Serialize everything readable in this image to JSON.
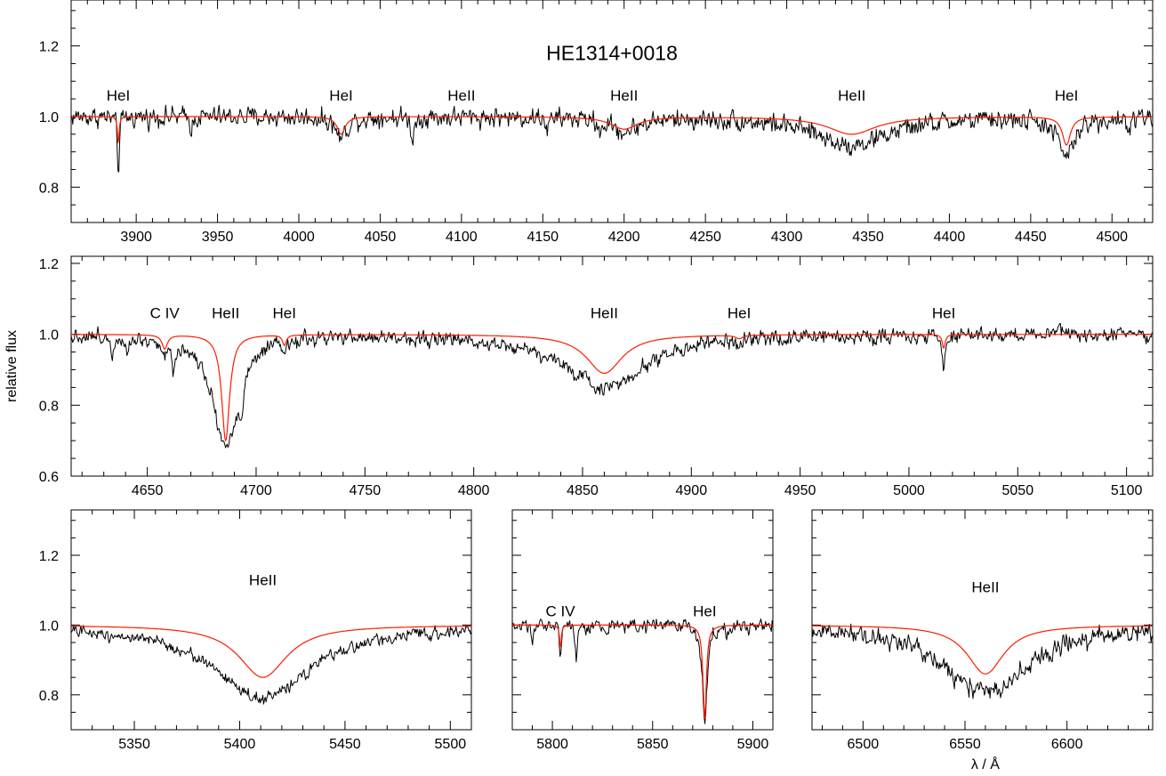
{
  "chart_data": {
    "type": "line",
    "title": "HE1314+0018",
    "ylabel": "relative flux",
    "xlabel": "λ / Å",
    "colors": {
      "observed": "#000000",
      "model": "#ff1a00"
    },
    "series_styles": [
      {
        "role": "observed spectrum",
        "color": "#000000"
      },
      {
        "role": "model spectrum",
        "color": "#ff1a00"
      }
    ],
    "panels": [
      {
        "id": "p1",
        "xlim": [
          3860,
          4525
        ],
        "ylim": [
          0.7,
          1.33
        ],
        "xticks": [
          3900,
          3950,
          4000,
          4050,
          4100,
          4150,
          4200,
          4250,
          4300,
          4350,
          4400,
          4450,
          4500
        ],
        "yticks": [
          0.8,
          1.0,
          1.2
        ],
        "ytick_labels": [
          "0.8",
          "1.0",
          "1.2"
        ],
        "xminor": 10,
        "yminor": 0.05,
        "noise": 0.02,
        "lines": [
          {
            "label": "HeI",
            "wl": 3889,
            "obs_depth": 0.16,
            "obs_width": 0.7,
            "model_depth": 0.08,
            "model_width": 0.6,
            "label_y": 1.06
          },
          {
            "label": "HeI",
            "wl": 4026,
            "obs_depth": 0.06,
            "obs_width": 4,
            "model_depth": 0.05,
            "model_width": 3,
            "label_y": 1.06
          },
          {
            "label": "HeII",
            "wl": 4100,
            "obs_depth": 0.0,
            "obs_width": 3,
            "model_depth": 0.0,
            "model_width": 3,
            "label_y": 1.06
          },
          {
            "label": "HeII",
            "wl": 4200,
            "obs_depth": 0.04,
            "obs_width": 10,
            "model_depth": 0.035,
            "model_width": 10,
            "label_y": 1.06
          },
          {
            "label": "HeII",
            "wl": 4340,
            "obs_depth": 0.08,
            "obs_width": 28,
            "model_depth": 0.05,
            "model_width": 18,
            "label_y": 1.06
          },
          {
            "label": "HeI",
            "wl": 4472,
            "obs_depth": 0.11,
            "obs_width": 6,
            "model_depth": 0.08,
            "model_width": 3,
            "label_y": 1.06
          }
        ],
        "extra_features": [
          {
            "wl": 3934,
            "depth": 0.05,
            "width": 0.6
          },
          {
            "wl": 4070,
            "depth": 0.07,
            "width": 1.0
          },
          {
            "wl": 4153,
            "depth": 0.04,
            "width": 0.8
          },
          {
            "wl": 4185,
            "depth": 0.05,
            "width": 0.6
          },
          {
            "wl": 4510,
            "depth": 0.05,
            "width": 1.0
          }
        ],
        "show_title": true,
        "title_y": 1.18
      },
      {
        "id": "p2",
        "xlim": [
          4615,
          5112
        ],
        "ylim": [
          0.6,
          1.22
        ],
        "xticks": [
          4650,
          4700,
          4750,
          4800,
          4850,
          4900,
          4950,
          5000,
          5050,
          5100
        ],
        "yticks": [
          0.6,
          0.8,
          1.0,
          1.2
        ],
        "ytick_labels": [
          "0.6",
          "0.8",
          "1.0",
          "1.2"
        ],
        "xminor": 10,
        "yminor": 0.05,
        "noise": 0.015,
        "lines": [
          {
            "label": "C IV",
            "wl": 4658,
            "obs_depth": 0.04,
            "obs_width": 1.5,
            "model_depth": 0.04,
            "model_width": 1.5,
            "label_y": 1.06
          },
          {
            "label": "HeII",
            "wl": 4686,
            "obs_depth": 0.31,
            "obs_width": 7,
            "model_depth": 0.3,
            "model_width": 2.2,
            "label_y": 1.06
          },
          {
            "label": "HeI",
            "wl": 4713,
            "obs_depth": 0.03,
            "obs_width": 1.5,
            "model_depth": 0.03,
            "model_width": 1.0,
            "label_y": 1.06
          },
          {
            "label": "HeII",
            "wl": 4860,
            "obs_depth": 0.15,
            "obs_width": 22,
            "model_depth": 0.11,
            "model_width": 10,
            "label_y": 1.06
          },
          {
            "label": "HeI",
            "wl": 4922,
            "obs_depth": 0.015,
            "obs_width": 2,
            "model_depth": 0.01,
            "model_width": 2,
            "label_y": 1.06
          },
          {
            "label": "HeI",
            "wl": 5016,
            "obs_depth": 0.09,
            "obs_width": 0.8,
            "model_depth": 0.04,
            "model_width": 0.8,
            "label_y": 1.06
          }
        ],
        "extra_features": [
          {
            "wl": 4634,
            "depth": 0.05,
            "width": 0.7
          },
          {
            "wl": 4641,
            "depth": 0.04,
            "width": 0.7
          },
          {
            "wl": 4662,
            "depth": 0.08,
            "width": 0.8
          },
          {
            "wl": 4693,
            "depth": 0.08,
            "width": 1.5
          },
          {
            "wl": 5069,
            "depth": -0.04,
            "width": 1.0
          }
        ],
        "show_ylabel": true
      },
      {
        "id": "p3",
        "xlim": [
          5320,
          5510
        ],
        "ylim": [
          0.7,
          1.33
        ],
        "xticks": [
          5350,
          5400,
          5450,
          5500
        ],
        "yticks": [
          0.8,
          1.0,
          1.2
        ],
        "ytick_labels": [
          "0.8",
          "1.0",
          "1.2"
        ],
        "xminor": 10,
        "yminor": 0.05,
        "noise": 0.012,
        "lines": [
          {
            "label": "HeII",
            "wl": 5411,
            "obs_depth": 0.21,
            "obs_width": 28,
            "model_depth": 0.15,
            "model_width": 14,
            "label_y": 1.13
          }
        ],
        "extra_features": []
      },
      {
        "id": "p4",
        "xlim": [
          5780,
          5910
        ],
        "ylim": [
          0.7,
          1.33
        ],
        "xticks": [
          5800,
          5850,
          5900
        ],
        "yticks": [
          0.8,
          1.0,
          1.2
        ],
        "ytick_labels": [
          "",
          "",
          ""
        ],
        "xminor": 10,
        "yminor": 0.05,
        "noise": 0.014,
        "lines": [
          {
            "label": "C IV",
            "wl": 5804,
            "obs_depth": 0.08,
            "obs_width": 0.6,
            "model_depth": 0.07,
            "model_width": 0.5,
            "label_y": 1.04
          },
          {
            "label": "HeI",
            "wl": 5876,
            "obs_depth": 0.28,
            "obs_width": 1.4,
            "model_depth": 0.27,
            "model_width": 1.0,
            "label_y": 1.04
          }
        ],
        "extra_features": [
          {
            "wl": 5812,
            "depth": 0.1,
            "width": 0.6
          },
          {
            "wl": 5790,
            "depth": 0.04,
            "width": 0.6
          },
          {
            "wl": 5887,
            "depth": 0.04,
            "width": 0.8
          }
        ]
      },
      {
        "id": "p5",
        "xlim": [
          6475,
          6642
        ],
        "ylim": [
          0.7,
          1.33
        ],
        "xticks": [
          6500,
          6550,
          6600
        ],
        "yticks": [
          0.8,
          1.0,
          1.2
        ],
        "ytick_labels": [
          "",
          "",
          ""
        ],
        "xminor": 10,
        "yminor": 0.05,
        "noise": 0.02,
        "lines": [
          {
            "label": "HeII",
            "wl": 6560,
            "obs_depth": 0.19,
            "obs_width": 26,
            "model_depth": 0.14,
            "model_width": 11,
            "label_y": 1.11
          }
        ],
        "extra_features": [],
        "show_xlabel": true
      }
    ]
  }
}
